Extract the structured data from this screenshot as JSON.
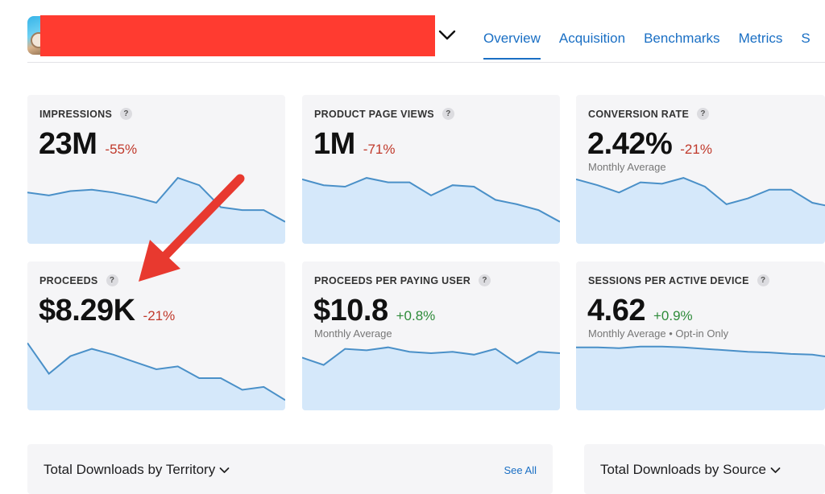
{
  "header": {
    "tabs": [
      {
        "label": "Overview",
        "active": true
      },
      {
        "label": "Acquisition",
        "active": false
      },
      {
        "label": "Benchmarks",
        "active": false
      },
      {
        "label": "Metrics",
        "active": false
      },
      {
        "label": "S",
        "active": false
      }
    ]
  },
  "cards": [
    {
      "title": "IMPRESSIONS",
      "value": "23M",
      "delta": "-55%",
      "trend": "neg",
      "subtitle": "",
      "series": [
        70,
        66,
        72,
        74,
        70,
        64,
        56,
        90,
        80,
        50,
        46,
        46,
        30
      ]
    },
    {
      "title": "PRODUCT PAGE VIEWS",
      "value": "1M",
      "delta": "-71%",
      "trend": "neg",
      "subtitle": "",
      "series": [
        88,
        80,
        78,
        90,
        84,
        84,
        66,
        80,
        78,
        60,
        54,
        46,
        30
      ]
    },
    {
      "title": "CONVERSION RATE",
      "value": "2.42%",
      "delta": "-21%",
      "trend": "neg",
      "subtitle": "Monthly Average",
      "series": [
        88,
        80,
        70,
        84,
        82,
        90,
        78,
        54,
        62,
        74,
        74,
        56,
        50
      ]
    },
    {
      "title": "PROCEEDS",
      "value": "$8.29K",
      "delta": "-21%",
      "trend": "neg",
      "subtitle": "",
      "series": [
        92,
        50,
        74,
        84,
        76,
        66,
        56,
        60,
        44,
        44,
        28,
        32,
        14
      ]
    },
    {
      "title": "PROCEEDS PER PAYING USER",
      "value": "$10.8",
      "delta": "+0.8%",
      "trend": "pos",
      "subtitle": "Monthly Average",
      "series": [
        72,
        62,
        84,
        82,
        86,
        80,
        78,
        80,
        76,
        84,
        64,
        80,
        78
      ]
    },
    {
      "title": "SESSIONS PER ACTIVE DEVICE",
      "value": "4.62",
      "delta": "+0.9%",
      "trend": "pos",
      "subtitle": "Monthly Average • Opt-in Only",
      "series": [
        86,
        86,
        85,
        87,
        87,
        86,
        84,
        82,
        80,
        79,
        77,
        76,
        72
      ]
    }
  ],
  "panels": {
    "territory": {
      "title": "Total Downloads by Territory",
      "see_all": "See All"
    },
    "source": {
      "title": "Total Downloads by Source"
    }
  },
  "colors": {
    "accent": "#1a6fc4",
    "line": "#4a90c8",
    "fill": "#cfe5fa",
    "negative": "#c0392b",
    "positive": "#2e8b3a",
    "annotation": "#e8392f",
    "redaction": "#ff3b30"
  }
}
